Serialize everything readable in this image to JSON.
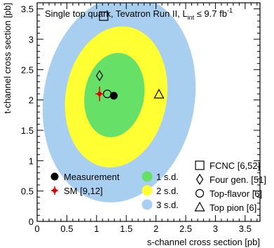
{
  "chart_data": {
    "type": "scatter",
    "title": "Single top quark, Tevatron Run II, L",
    "title_sub": "int",
    "title_tail": " ≤ 9.7 fb",
    "title_sup": "-1",
    "xlabel": "s-channel cross section [pb]",
    "ylabel": "t-channel cross section [pb]",
    "xlim": [
      0,
      3.75
    ],
    "ylim": [
      0,
      3.6
    ],
    "x_ticks": [
      "0",
      "0.5",
      "1",
      "1.5",
      "2",
      "2.5",
      "3",
      "3.5"
    ],
    "x_tick_values": [
      0,
      0.5,
      1,
      1.5,
      2,
      2.5,
      3,
      3.5
    ],
    "y_ticks": [
      "0",
      "0.5",
      "1",
      "1.5",
      "2",
      "2.5",
      "3",
      "3.5"
    ],
    "y_tick_values": [
      0,
      0.5,
      1,
      1.5,
      2,
      2.5,
      3,
      3.5
    ],
    "contours": [
      {
        "label": "3 s.d.",
        "cx": 1.38,
        "cy": 2.02,
        "rx": 1.27,
        "ry": 1.72,
        "angle": 10,
        "color": "#a8cff0"
      },
      {
        "label": "2 s.d.",
        "cx": 1.33,
        "cy": 2.05,
        "rx": 0.85,
        "ry": 1.17,
        "angle": 10,
        "color": "#ffff33"
      },
      {
        "label": "1 s.d.",
        "cx": 1.3,
        "cy": 2.08,
        "rx": 0.5,
        "ry": 0.7,
        "angle": 10,
        "color": "#66e066"
      }
    ],
    "measurement": {
      "label": "Measurement",
      "x": 1.29,
      "y": 2.07
    },
    "sm": {
      "label": "SM [9,12]",
      "x": 1.05,
      "y": 2.1,
      "xerr": 0.07,
      "yerr": 0.12,
      "color": "#e00000"
    },
    "predictions": [
      {
        "label": "FCNC [6,52]",
        "marker": "square",
        "x": 1.12,
        "y": 3.38
      },
      {
        "label": "Four gen. [51]",
        "marker": "diamond",
        "x": 1.05,
        "y": 2.4
      },
      {
        "label": "Top-flavor [6]",
        "marker": "circle",
        "x": 1.18,
        "y": 2.1
      },
      {
        "label": "Top pion [6]",
        "marker": "triangle",
        "x": 2.05,
        "y": 2.09
      }
    ]
  }
}
